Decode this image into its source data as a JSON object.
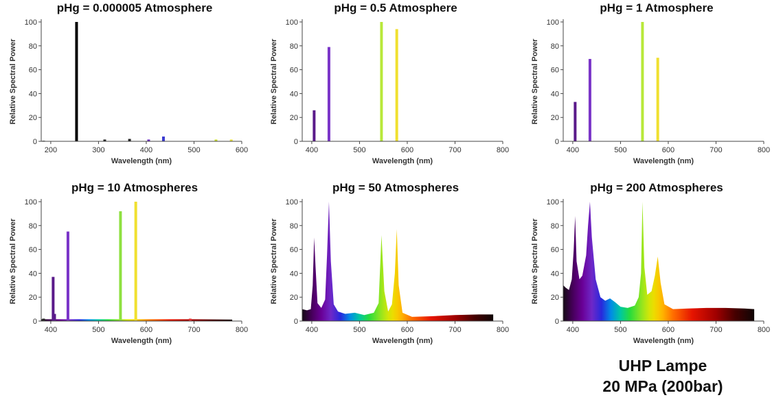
{
  "chart_data": [
    {
      "type": "bar",
      "title": "pHg  = 0.000005 Atmosphere",
      "xlabel": "Wavelength (nm)",
      "ylabel": "Relative Spectral Power",
      "xlim": [
        180,
        600
      ],
      "ylim": [
        0,
        100
      ],
      "xticks": [
        200,
        300,
        400,
        500,
        600
      ],
      "yticks": [
        0,
        20,
        40,
        60,
        80,
        100
      ],
      "lines": [
        {
          "x": 185,
          "y": 0.5,
          "color": "#333333"
        },
        {
          "x": 254,
          "y": 100,
          "color": "#000000"
        },
        {
          "x": 313,
          "y": 1.5,
          "color": "#222222"
        },
        {
          "x": 365,
          "y": 2,
          "color": "#222222"
        },
        {
          "x": 405,
          "y": 1.5,
          "color": "#6a2bbf"
        },
        {
          "x": 436,
          "y": 4,
          "color": "#3a3ad0"
        },
        {
          "x": 546,
          "y": 1.5,
          "color": "#c8dc2e"
        },
        {
          "x": 578,
          "y": 1.5,
          "color": "#e8e040"
        }
      ]
    },
    {
      "type": "bar",
      "title": "pHg  = 0.5 Atmosphere",
      "xlabel": "Wavelength (nm)",
      "ylabel": "Relative Spectral Power",
      "xlim": [
        380,
        800
      ],
      "ylim": [
        0,
        100
      ],
      "xticks": [
        400,
        500,
        600,
        700,
        800
      ],
      "yticks": [
        0,
        20,
        40,
        60,
        80,
        100
      ],
      "lines": [
        {
          "x": 405,
          "y": 26,
          "color": "#5a1a8a"
        },
        {
          "x": 436,
          "y": 79,
          "color": "#7a35c8"
        },
        {
          "x": 546,
          "y": 100,
          "color": "#b8e83a"
        },
        {
          "x": 578,
          "y": 94,
          "color": "#f0e030"
        }
      ]
    },
    {
      "type": "bar",
      "title": "pHg  = 1 Atmosphere",
      "xlabel": "Wavelength (nm)",
      "ylabel": "Relative Spectral Power",
      "xlim": [
        380,
        800
      ],
      "ylim": [
        0,
        100
      ],
      "xticks": [
        400,
        500,
        600,
        700,
        800
      ],
      "yticks": [
        0,
        20,
        40,
        60,
        80,
        100
      ],
      "lines": [
        {
          "x": 405,
          "y": 33,
          "color": "#5a1a8a"
        },
        {
          "x": 436,
          "y": 69,
          "color": "#7a35c8"
        },
        {
          "x": 546,
          "y": 100,
          "color": "#b8e83a"
        },
        {
          "x": 578,
          "y": 70,
          "color": "#f0e030"
        }
      ]
    },
    {
      "type": "area",
      "title": "pHg  = 10 Atmospheres",
      "xlabel": "Wavelength (nm)",
      "ylabel": "Relative Spectral Power",
      "xlim": [
        380,
        800
      ],
      "ylim": [
        0,
        100
      ],
      "xticks": [
        400,
        500,
        600,
        700,
        800
      ],
      "yticks": [
        0,
        20,
        40,
        60,
        80,
        100
      ],
      "continuum": {
        "x": [
          380,
          460,
          540,
          620,
          700,
          780
        ],
        "y": [
          1.5,
          1.5,
          1.5,
          1.5,
          1.5,
          1.2
        ]
      },
      "lines": [
        {
          "x": 385,
          "y": 2,
          "color": "#222222"
        },
        {
          "x": 405,
          "y": 37,
          "color": "#5a1a8a"
        },
        {
          "x": 408,
          "y": 6,
          "color": "#5a1a8a"
        },
        {
          "x": 436,
          "y": 75,
          "color": "#7a35c8"
        },
        {
          "x": 546,
          "y": 92,
          "color": "#8ee040"
        },
        {
          "x": 578,
          "y": 100,
          "color": "#f0e030"
        },
        {
          "x": 692,
          "y": 2,
          "color": "#e03030"
        }
      ]
    },
    {
      "type": "area",
      "title": "pHg  = 50 Atmospheres",
      "xlabel": "Wavelength (nm)",
      "ylabel": "Relative Spectral Power",
      "xlim": [
        380,
        800
      ],
      "ylim": [
        0,
        100
      ],
      "xticks": [
        400,
        500,
        600,
        700,
        800
      ],
      "yticks": [
        0,
        20,
        40,
        60,
        80,
        100
      ],
      "x": [
        380,
        390,
        398,
        402,
        405,
        408,
        412,
        420,
        428,
        432,
        436,
        440,
        446,
        455,
        470,
        490,
        510,
        530,
        540,
        546,
        552,
        560,
        568,
        574,
        578,
        582,
        590,
        610,
        650,
        700,
        750,
        780
      ],
      "y": [
        10,
        9,
        10,
        30,
        70,
        45,
        15,
        11,
        18,
        55,
        100,
        50,
        14,
        8,
        6,
        7,
        5,
        7,
        15,
        72,
        25,
        8,
        14,
        40,
        77,
        30,
        7,
        3.5,
        4,
        5,
        5.5,
        5.5
      ]
    },
    {
      "type": "area",
      "title": "pHg  = 200 Atmospheres",
      "xlabel": "Wavelength (nm)",
      "ylabel": "Relative Spectral Power",
      "xlim": [
        380,
        800
      ],
      "ylim": [
        0,
        100
      ],
      "xticks": [
        400,
        500,
        600,
        700,
        800
      ],
      "yticks": [
        0,
        20,
        40,
        60,
        80,
        100
      ],
      "x": [
        380,
        385,
        392,
        398,
        402,
        405,
        408,
        414,
        420,
        428,
        432,
        436,
        440,
        448,
        458,
        468,
        478,
        488,
        500,
        515,
        530,
        538,
        543,
        546,
        550,
        556,
        565,
        572,
        578,
        584,
        592,
        610,
        640,
        680,
        720,
        760,
        780
      ],
      "y": [
        30,
        28,
        26,
        35,
        60,
        88,
        50,
        35,
        38,
        55,
        80,
        100,
        70,
        35,
        20,
        17,
        19,
        16,
        12,
        11,
        13,
        20,
        40,
        100,
        45,
        22,
        25,
        38,
        54,
        32,
        14,
        10,
        10.5,
        11,
        11,
        10.5,
        10
      ]
    }
  ],
  "caption": {
    "line1": "UHP Lampe",
    "line2": "20 MPa (200bar)"
  }
}
